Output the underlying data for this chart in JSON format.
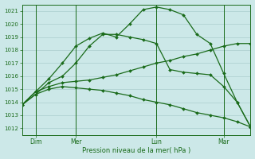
{
  "bg_color": "#cce8e8",
  "grid_color": "#aacece",
  "line_color": "#1a6b1a",
  "marker_color": "#1a6b1a",
  "title": "Pression niveau de la mer( hPa )",
  "ylim": [
    1011.5,
    1021.5
  ],
  "yticks": [
    1012,
    1013,
    1014,
    1015,
    1016,
    1017,
    1018,
    1019,
    1020,
    1021
  ],
  "xlim": [
    0,
    17
  ],
  "day_labels": [
    "Dim",
    "Mer",
    "Lun",
    "Mar"
  ],
  "day_positions": [
    1,
    4,
    10,
    15
  ],
  "series1_x": [
    0,
    1,
    2,
    3,
    4,
    5,
    6,
    7,
    8,
    9,
    10,
    11,
    12,
    13,
    14,
    15,
    16,
    17
  ],
  "series1_y": [
    1013.8,
    1014.6,
    1015.0,
    1015.2,
    1015.1,
    1015.0,
    1014.9,
    1014.7,
    1014.5,
    1014.2,
    1014.0,
    1013.8,
    1013.5,
    1013.2,
    1013.0,
    1012.8,
    1012.5,
    1012.1
  ],
  "series2_x": [
    0,
    1,
    2,
    3,
    4,
    5,
    6,
    7,
    8,
    9,
    10,
    11,
    12,
    13,
    14,
    15,
    16,
    17
  ],
  "series2_y": [
    1013.8,
    1014.8,
    1015.2,
    1015.5,
    1015.6,
    1015.7,
    1015.9,
    1016.1,
    1016.4,
    1016.7,
    1017.0,
    1017.2,
    1017.5,
    1017.7,
    1018.0,
    1018.3,
    1018.5,
    1018.5
  ],
  "series3_x": [
    0,
    1,
    2,
    3,
    4,
    5,
    6,
    7,
    8,
    9,
    10,
    11,
    12,
    13,
    14,
    15,
    16,
    17
  ],
  "series3_y": [
    1013.8,
    1014.6,
    1015.5,
    1016.0,
    1017.0,
    1018.3,
    1019.2,
    1019.2,
    1019.0,
    1018.8,
    1018.5,
    1016.5,
    1016.3,
    1016.2,
    1016.1,
    1015.2,
    1014.0,
    1012.1
  ],
  "series4_x": [
    0,
    1,
    2,
    3,
    4,
    5,
    6,
    7,
    8,
    9,
    10,
    11,
    12,
    13,
    14,
    15,
    16,
    17
  ],
  "series4_y": [
    1013.8,
    1014.8,
    1015.8,
    1017.0,
    1018.3,
    1018.9,
    1019.3,
    1019.0,
    1020.0,
    1021.1,
    1021.3,
    1021.1,
    1020.7,
    1019.2,
    1018.5,
    1016.2,
    1014.0,
    1012.1
  ]
}
